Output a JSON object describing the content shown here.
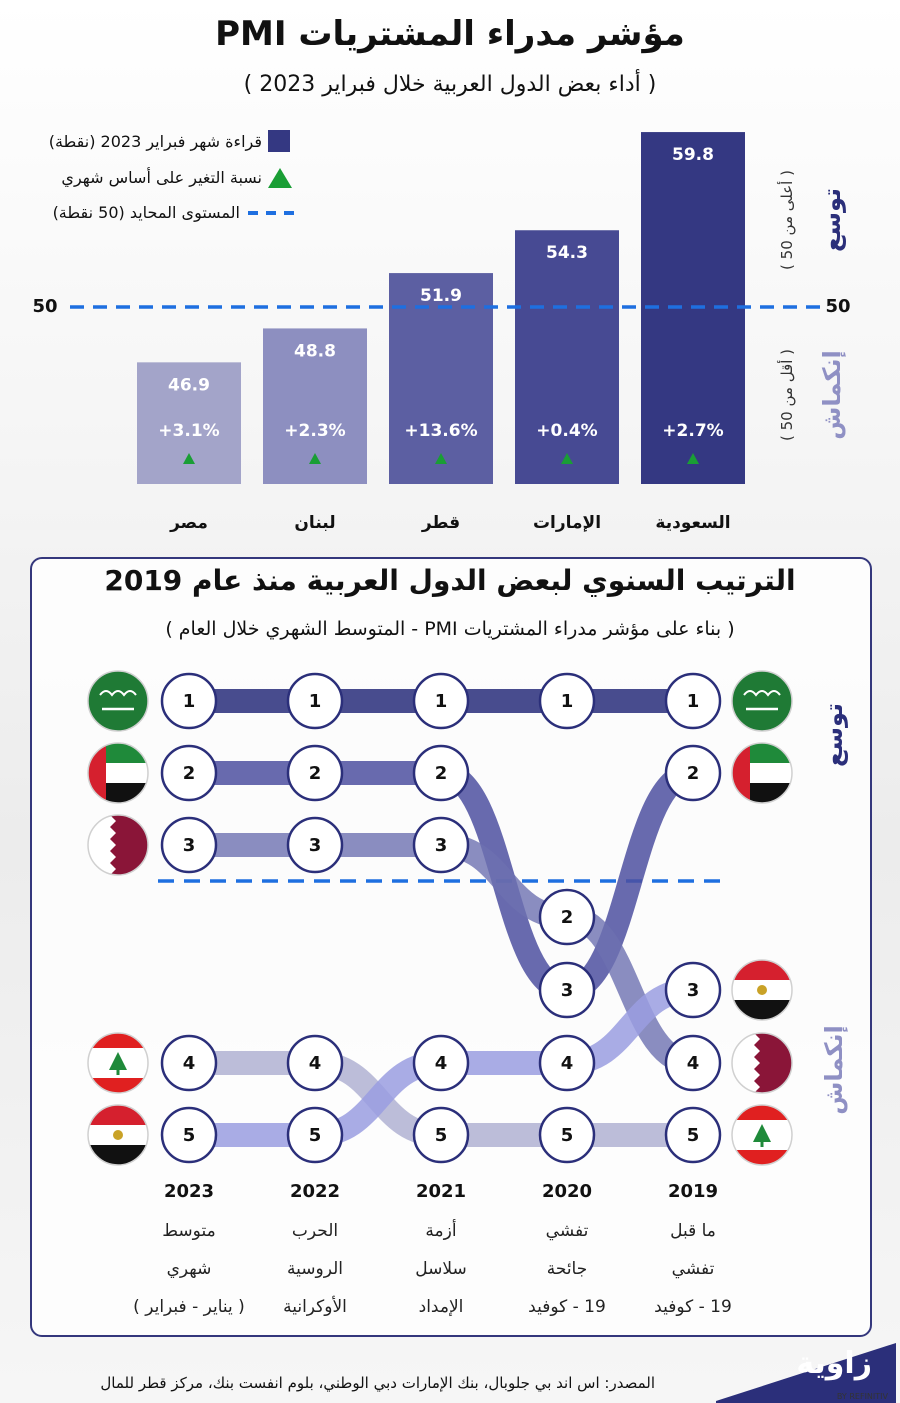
{
  "title": "مؤشر مدراء المشتريات PMI",
  "subtitle": "( أداء بعض الدول العربية خلال فبراير 2023 )",
  "legend": {
    "reading": "قراءة شهر فبراير 2023 (نقطة)",
    "change": "نسبة التغير على أساس شهري",
    "neutral": "المستوى المحايد (50 نقطة)"
  },
  "side_labels": {
    "expansion": "توسع",
    "expansion_note": "( أعلى من 50 )",
    "contraction": "إنكماش",
    "contraction_note": "( أقل من 50 )",
    "fifty": "50"
  },
  "colors": {
    "dark_bar": "#343882",
    "light_bar": "#9fa0c6",
    "neutral_line": "#1e6fe0",
    "triangle": "#1a9e35"
  },
  "chart_data": [
    {
      "type": "bar",
      "title": "مؤشر مدراء المشتريات PMI",
      "categories": [
        "مصر",
        "لبنان",
        "قطر",
        "الإمارات",
        "السعودية"
      ],
      "series": [
        {
          "name": "قراءة شهر فبراير 2023 (نقطة)",
          "values": [
            46.9,
            48.8,
            51.9,
            54.3,
            59.8
          ]
        },
        {
          "name": "نسبة التغير على أساس شهري",
          "values": [
            3.1,
            2.3,
            13.6,
            0.4,
            2.7
          ]
        }
      ],
      "value_labels": [
        "46.9",
        "48.8",
        "51.9",
        "54.3",
        "59.8"
      ],
      "change_labels": [
        "+3.1%",
        "+2.3%",
        "+13.6%",
        "+0.4%",
        "+2.7%"
      ],
      "reference_line": 50,
      "ylim": [
        40,
        60
      ]
    },
    {
      "type": "line",
      "title": "الترتيب السنوي لبعض الدول العربية منذ عام 2019",
      "subtitle": "( بناء على مؤشر مدراء المشتريات PMI - المتوسط الشهري خلال العام )",
      "x": [
        "2023",
        "2022",
        "2021",
        "2020",
        "2019"
      ],
      "x_notes": [
        [
          "متوسط",
          "شهري",
          "( يناير - فبراير )"
        ],
        [
          "الحرب",
          "الروسية",
          "الأوكرانية"
        ],
        [
          "أزمة",
          "سلاسل",
          "الإمداد"
        ],
        [
          "تفشي",
          "جائحة",
          "19 - كوفيد"
        ],
        [
          "ما قبل",
          "تفشي",
          "19 - كوفيد"
        ]
      ],
      "series": [
        {
          "name": "السعودية",
          "rank": [
            1,
            1,
            1,
            1,
            1
          ],
          "group": [
            "e",
            "e",
            "e",
            "e",
            "e"
          ]
        },
        {
          "name": "الإمارات",
          "rank": [
            2,
            2,
            2,
            3,
            2
          ],
          "group": [
            "e",
            "e",
            "e",
            "c",
            "e"
          ]
        },
        {
          "name": "قطر",
          "rank": [
            3,
            3,
            3,
            2,
            4
          ],
          "group": [
            "e",
            "e",
            "e",
            "c",
            "c"
          ]
        },
        {
          "name": "لبنان",
          "rank": [
            4,
            4,
            5,
            5,
            5
          ],
          "group": [
            "c",
            "c",
            "c",
            "c",
            "c"
          ]
        },
        {
          "name": "مصر",
          "rank": [
            5,
            5,
            4,
            4,
            3
          ],
          "group": [
            "c",
            "c",
            "c",
            "c",
            "c"
          ]
        }
      ]
    }
  ],
  "source": "المصدر: اس اند بي جلوبال، بنك الإمارات دبي الوطني، بلوم انفست بنك، مركز قطر للمال",
  "logo": {
    "name": "زاوية",
    "tag": "BY REFINITIV"
  }
}
